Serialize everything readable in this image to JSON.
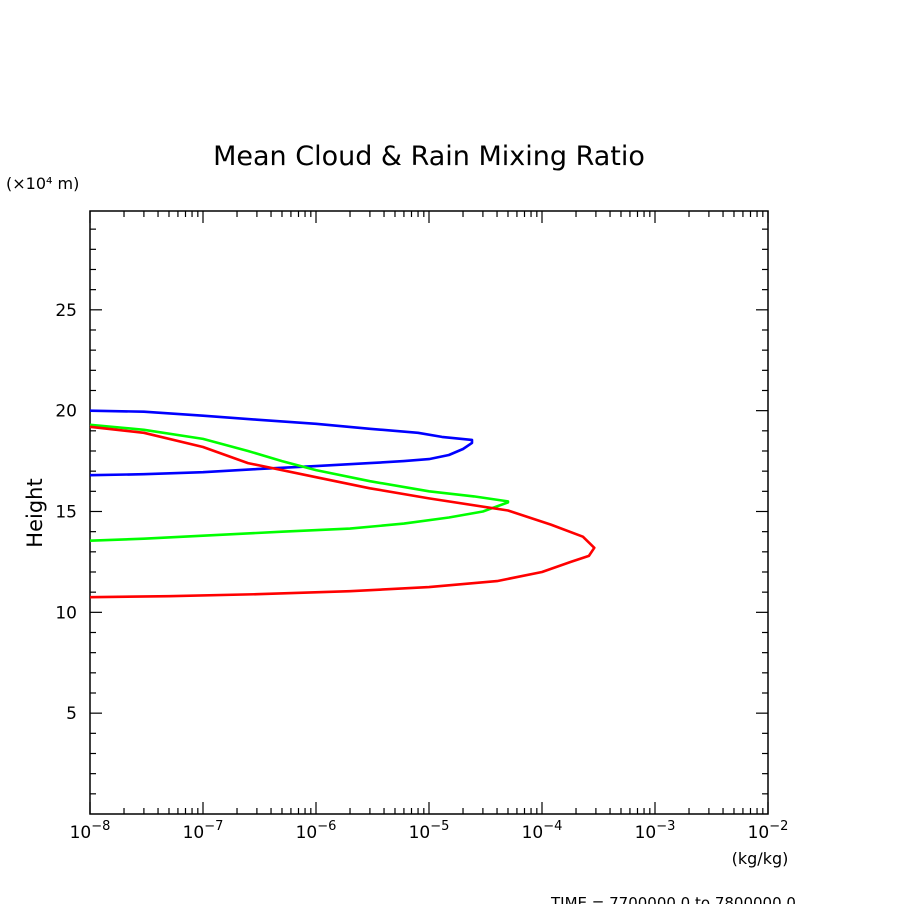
{
  "chart_data": {
    "type": "line",
    "title": "Mean Cloud & Rain Mixing Ratio",
    "ylabel": "Height",
    "y_units": "(×10⁴ m)",
    "x_units": "(kg/kg)",
    "xscale": "log",
    "xlim": [
      1e-08,
      0.01
    ],
    "ylim": [
      0,
      29.9
    ],
    "x_tick_labels": [
      {
        "base": "10",
        "exp": "−8",
        "value": 1e-08
      },
      {
        "base": "10",
        "exp": "−7",
        "value": 1e-07
      },
      {
        "base": "10",
        "exp": "−6",
        "value": 1e-06
      },
      {
        "base": "10",
        "exp": "−5",
        "value": 1e-05
      },
      {
        "base": "10",
        "exp": "−4",
        "value": 0.0001
      },
      {
        "base": "10",
        "exp": "−3",
        "value": 0.001
      },
      {
        "base": "10",
        "exp": "−2",
        "value": 0.01
      }
    ],
    "y_tick_labels": [
      "5",
      "10",
      "15",
      "20",
      "25"
    ],
    "y_tick_values": [
      5,
      10,
      15,
      20,
      25
    ],
    "grid": false,
    "series": [
      {
        "color": "#0000ff",
        "x": [
          1e-08,
          3e-08,
          1e-07,
          3e-07,
          1e-06,
          3e-06,
          8e-06,
          1.3e-05,
          2.4e-05,
          2.4e-05,
          2e-05,
          1.5e-05,
          1e-05,
          6e-06,
          3e-06,
          1e-06,
          3e-07,
          1e-07,
          3e-08,
          1e-08
        ],
        "y": [
          20.0,
          19.95,
          19.75,
          19.55,
          19.35,
          19.1,
          18.9,
          18.7,
          18.55,
          18.4,
          18.1,
          17.8,
          17.6,
          17.5,
          17.4,
          17.25,
          17.1,
          16.95,
          16.85,
          16.8
        ]
      },
      {
        "color": "#00ff00",
        "x": [
          1e-08,
          3e-08,
          1e-07,
          2.5e-07,
          5e-07,
          1e-06,
          3e-06,
          1e-05,
          2.5e-05,
          5e-05,
          5e-05,
          3e-05,
          1.5e-05,
          6e-06,
          2e-06,
          5e-07,
          1e-07,
          3e-08,
          1e-08
        ],
        "y": [
          19.3,
          19.05,
          18.6,
          18.0,
          17.5,
          17.05,
          16.5,
          16.0,
          15.75,
          15.5,
          15.45,
          15.0,
          14.7,
          14.4,
          14.15,
          14.0,
          13.8,
          13.65,
          13.55
        ]
      },
      {
        "color": "#ff0000",
        "x": [
          1e-08,
          3e-08,
          1e-07,
          2.5e-07,
          1e-06,
          3e-06,
          1e-05,
          5e-05,
          0.00012,
          0.00023,
          0.00029,
          0.00026,
          0.00018,
          0.0001,
          4e-05,
          1e-05,
          2e-06,
          3e-07,
          5e-08,
          1e-08
        ],
        "y": [
          19.2,
          18.9,
          18.2,
          17.4,
          16.7,
          16.15,
          15.65,
          15.05,
          14.35,
          13.75,
          13.2,
          12.8,
          12.5,
          12.0,
          11.55,
          11.25,
          11.05,
          10.9,
          10.8,
          10.75
        ]
      }
    ]
  },
  "footer": {
    "time_range": "TIME = 7700000.0 to 7800000.0"
  }
}
